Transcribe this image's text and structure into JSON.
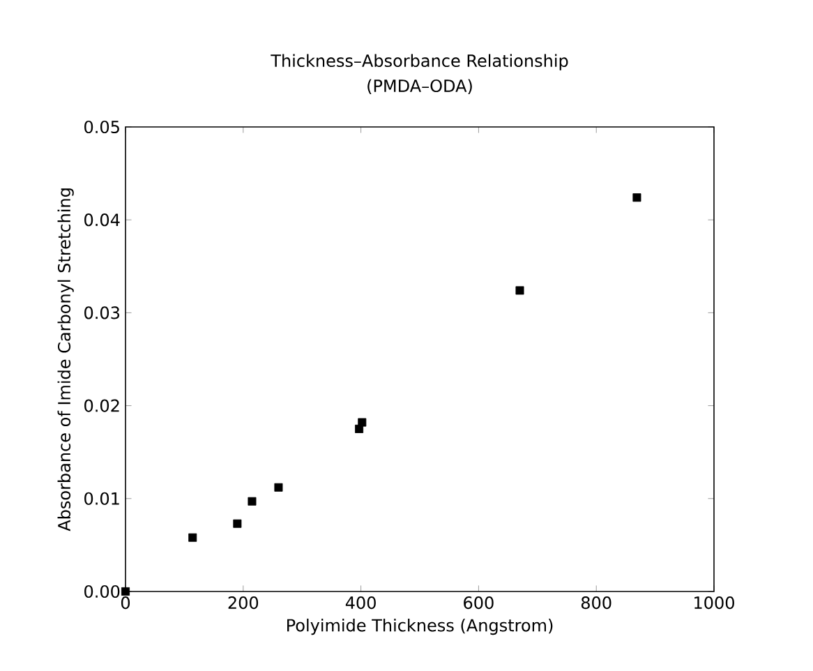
{
  "chart_data": {
    "type": "scatter",
    "title": "Thickness–Absorbance Relationship",
    "subtitle": "(PMDA–ODA)",
    "xlabel": "Polyimide Thickness (Angstrom)",
    "ylabel": "Absorbance of Imide Carbonyl Stretching",
    "x": [
      0,
      114,
      190,
      215,
      260,
      397,
      402,
      670,
      869
    ],
    "values": [
      0,
      0.0058,
      0.0073,
      0.0097,
      0.0112,
      0.0175,
      0.0182,
      0.0324,
      0.0424
    ],
    "color": "#000000",
    "marker": "square",
    "xlim": [
      0,
      1000
    ],
    "xticks": [
      0,
      200,
      400,
      600,
      800,
      1000
    ],
    "ylim": [
      0,
      0.05
    ],
    "yticks": [
      {
        "value": 0,
        "label": "0.00"
      },
      {
        "value": 0.01,
        "label": "0.01"
      },
      {
        "value": 0.02,
        "label": "0.02"
      },
      {
        "value": 0.03,
        "label": "0.03"
      },
      {
        "value": 0.04,
        "label": "0.04"
      },
      {
        "value": 0.05,
        "label": "0.05"
      }
    ]
  }
}
